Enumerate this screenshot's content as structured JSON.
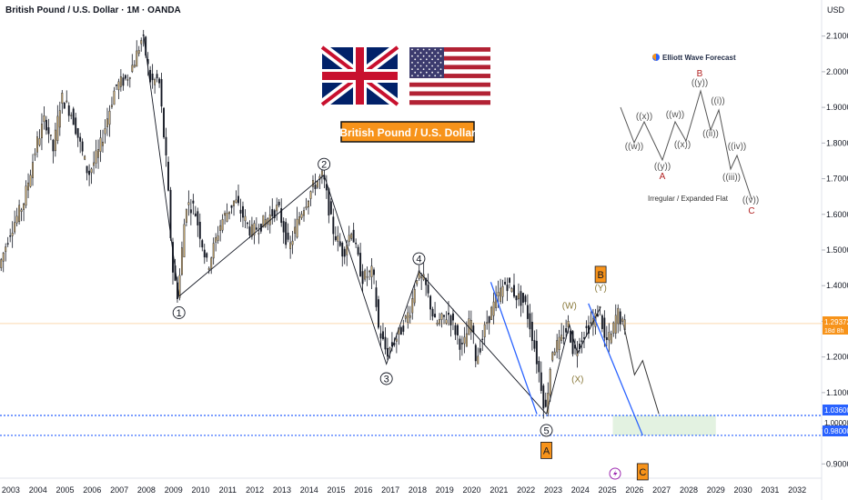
{
  "header": {
    "title": "British Pound / U.S. Dollar · 1M · OANDA",
    "currency": "USD"
  },
  "banner": {
    "label": "British Pound / U.S. Dollar",
    "flag_left": "uk-flag",
    "flag_right": "us-flag"
  },
  "logo": {
    "text": "Elliott Wave Forecast"
  },
  "price_tags": {
    "current": "1.29372",
    "current_sub": "18d 8h",
    "level_a": "1.03600",
    "level_b": "1.00000",
    "level_c": "0.98000"
  },
  "colors": {
    "bull": "#c9a96e",
    "bear": "#131722",
    "wave_line": "#131722",
    "trend_blue": "#2962ff",
    "dotted_blue": "#2962ff",
    "orange_box": "#f7931a",
    "target_zone": "#e3f2e1",
    "current_line": "#f7931a"
  },
  "chart_data": {
    "type": "candlestick",
    "x_axis_ticks": [
      "2003",
      "2004",
      "2005",
      "2006",
      "2007",
      "2008",
      "2009",
      "2010",
      "2011",
      "2012",
      "2013",
      "2014",
      "2015",
      "2016",
      "2017",
      "2018",
      "2019",
      "2020",
      "2021",
      "2022",
      "2023",
      "2024",
      "2025",
      "2026",
      "2027",
      "2028",
      "2029",
      "2030",
      "2031",
      "2032"
    ],
    "y_axis_ticks": [
      "2.10000",
      "2.00000",
      "1.90000",
      "1.80000",
      "1.70000",
      "1.60000",
      "1.50000",
      "1.40000",
      "1.30000",
      "1.20000",
      "1.10000",
      "1.00000",
      "0.90000"
    ],
    "ylim": [
      0.86,
      2.14
    ],
    "xlim": [
      2002.6,
      2032.9
    ],
    "price_path": [
      [
        2002.6,
        1.45
      ],
      [
        2003.0,
        1.55
      ],
      [
        2003.5,
        1.63
      ],
      [
        2004.0,
        1.8
      ],
      [
        2004.3,
        1.87
      ],
      [
        2004.6,
        1.78
      ],
      [
        2004.9,
        1.93
      ],
      [
        2005.3,
        1.88
      ],
      [
        2005.9,
        1.71
      ],
      [
        2006.3,
        1.78
      ],
      [
        2006.9,
        1.96
      ],
      [
        2007.3,
        1.98
      ],
      [
        2007.6,
        2.03
      ],
      [
        2007.9,
        2.1
      ],
      [
        2008.2,
        1.97
      ],
      [
        2008.5,
        1.98
      ],
      [
        2008.8,
        1.72
      ],
      [
        2009.0,
        1.45
      ],
      [
        2009.2,
        1.37
      ],
      [
        2009.5,
        1.63
      ],
      [
        2009.8,
        1.62
      ],
      [
        2010.3,
        1.45
      ],
      [
        2010.8,
        1.58
      ],
      [
        2011.3,
        1.64
      ],
      [
        2011.9,
        1.55
      ],
      [
        2012.4,
        1.58
      ],
      [
        2012.9,
        1.62
      ],
      [
        2013.3,
        1.5
      ],
      [
        2013.7,
        1.6
      ],
      [
        2014.2,
        1.68
      ],
      [
        2014.55,
        1.71
      ],
      [
        2014.9,
        1.56
      ],
      [
        2015.3,
        1.49
      ],
      [
        2015.6,
        1.56
      ],
      [
        2016.0,
        1.42
      ],
      [
        2016.4,
        1.44
      ],
      [
        2016.6,
        1.28
      ],
      [
        2016.9,
        1.21
      ],
      [
        2017.4,
        1.27
      ],
      [
        2017.8,
        1.34
      ],
      [
        2018.0,
        1.43
      ],
      [
        2018.3,
        1.41
      ],
      [
        2018.7,
        1.29
      ],
      [
        2019.2,
        1.32
      ],
      [
        2019.7,
        1.22
      ],
      [
        2020.0,
        1.31
      ],
      [
        2020.2,
        1.19
      ],
      [
        2020.6,
        1.3
      ],
      [
        2021.0,
        1.37
      ],
      [
        2021.3,
        1.41
      ],
      [
        2021.7,
        1.37
      ],
      [
        2022.0,
        1.35
      ],
      [
        2022.3,
        1.25
      ],
      [
        2022.6,
        1.12
      ],
      [
        2022.75,
        1.04
      ],
      [
        2023.0,
        1.22
      ],
      [
        2023.3,
        1.24
      ],
      [
        2023.6,
        1.29
      ],
      [
        2023.8,
        1.21
      ],
      [
        2024.2,
        1.27
      ],
      [
        2024.6,
        1.31
      ],
      [
        2024.75,
        1.34
      ],
      [
        2024.95,
        1.24
      ],
      [
        2025.2,
        1.26
      ],
      [
        2025.4,
        1.33
      ],
      [
        2025.6,
        1.29
      ]
    ],
    "waves": [
      {
        "label": "1",
        "x": 2009.2,
        "y": 1.37
      },
      {
        "label": "2",
        "x": 2014.55,
        "y": 1.71
      },
      {
        "label": "3",
        "x": 2016.85,
        "y": 1.18
      },
      {
        "label": "4",
        "x": 2018.05,
        "y": 1.44
      },
      {
        "label": "5",
        "x": 2022.75,
        "y": 1.04
      }
    ],
    "corrective": [
      {
        "label": "(W)",
        "x": 2023.6,
        "y": 1.31
      },
      {
        "label": "(X)",
        "x": 2023.9,
        "y": 1.19
      },
      {
        "label": "(Y)",
        "x": 2024.75,
        "y": 1.36
      }
    ],
    "boxes": [
      {
        "label": "A",
        "x": 2022.75,
        "y": 1.04
      },
      {
        "label": "B",
        "x": 2024.75,
        "y": 1.36
      },
      {
        "label": "C",
        "x": 2026.3,
        "y": 0.98
      }
    ],
    "projection": [
      [
        2025.6,
        1.29
      ],
      [
        2026.0,
        1.15
      ],
      [
        2026.3,
        1.19
      ],
      [
        2026.9,
        1.04
      ]
    ],
    "inset": {
      "caption": "Irregular / Expanded Flat",
      "labels": [
        {
          "t": "((w))",
          "cls": "minor"
        },
        {
          "t": "((x))",
          "cls": "minor"
        },
        {
          "t": "((y))",
          "cls": "minor"
        },
        {
          "t": "A",
          "cls": "minor-red"
        },
        {
          "t": "((w))",
          "cls": "minor"
        },
        {
          "t": "((x))",
          "cls": "minor"
        },
        {
          "t": "((y))",
          "cls": "minor"
        },
        {
          "t": "B",
          "cls": "minor-red"
        },
        {
          "t": "((i))",
          "cls": "minor"
        },
        {
          "t": "((ii))",
          "cls": "minor"
        },
        {
          "t": "((iii))",
          "cls": "minor"
        },
        {
          "t": "((iv))",
          "cls": "minor"
        },
        {
          "t": "((v))",
          "cls": "minor"
        },
        {
          "t": "C",
          "cls": "minor-red"
        }
      ]
    }
  }
}
